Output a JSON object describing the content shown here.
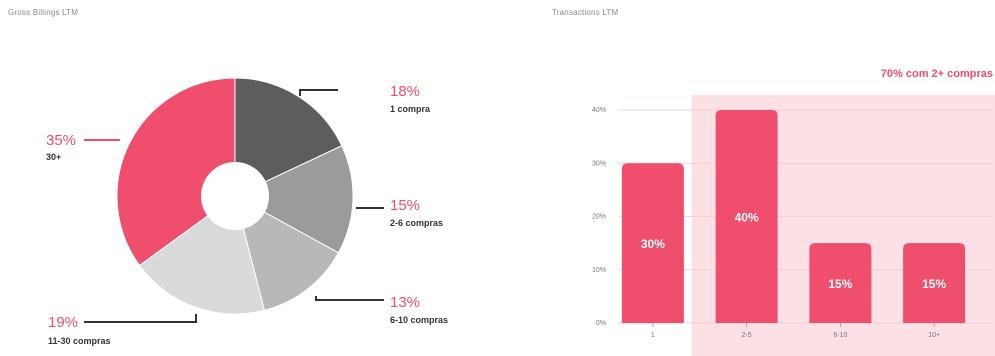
{
  "left_panel": {
    "title": "Gross Billings LTM"
  },
  "right_panel": {
    "title": "Transactions LTM"
  },
  "colors": {
    "accent": "#ef4e6c",
    "dark": "#5d5d5d",
    "mid": "#9b9b9b",
    "midlight": "#b8b8b8",
    "light": "#dadada",
    "highlight_bg": "#fbe0e5",
    "grid": "#f2c7cf"
  },
  "chart_data": [
    {
      "type": "pie",
      "title": "",
      "slices": [
        {
          "value": 18,
          "label": "18%",
          "caption": "1 compra",
          "color": "#5d5d5d"
        },
        {
          "value": 15,
          "label": "15%",
          "caption": "2-6 compras",
          "color": "#9b9b9b"
        },
        {
          "value": 13,
          "label": "13%",
          "caption": "6-10 compras",
          "color": "#b8b8b8"
        },
        {
          "value": 19,
          "label": "19%",
          "caption": "11-30 compras",
          "color": "#dadada"
        },
        {
          "value": 35,
          "label": "35%",
          "caption": "30+",
          "color": "#ef4e6c"
        }
      ]
    },
    {
      "type": "bar",
      "title": "",
      "categories": [
        "1",
        "2-5",
        "6-10",
        "10+"
      ],
      "values": [
        30,
        40,
        15,
        15
      ],
      "value_labels": [
        "30%",
        "40%",
        "15%",
        "15%"
      ],
      "y_ticks": [
        "0%",
        "10%",
        "20%",
        "30%",
        "40%"
      ],
      "ylim": [
        0,
        40
      ],
      "highlight": {
        "text": "70% com 2+ compras",
        "from_category": "2-5"
      },
      "grid": true
    }
  ]
}
